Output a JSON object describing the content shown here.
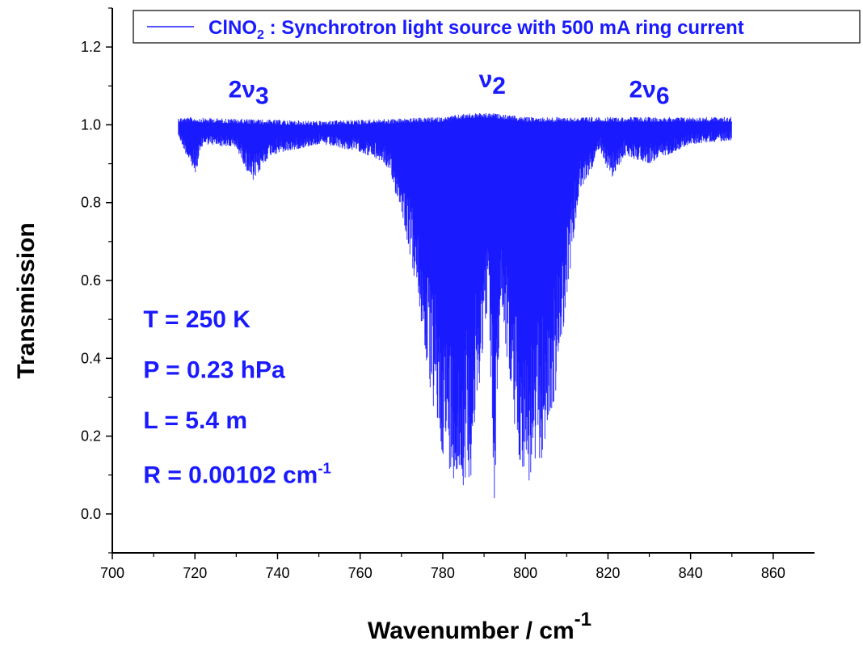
{
  "chart_data": {
    "type": "line",
    "xlabel": {
      "text": "Wavenumber / cm",
      "superscript": "-1"
    },
    "ylabel": "Transmission",
    "xlim": [
      700,
      870
    ],
    "ylim": [
      -0.1,
      1.3
    ],
    "x_ticks": [
      700,
      720,
      740,
      760,
      780,
      800,
      820,
      840,
      860
    ],
    "y_ticks": [
      0.0,
      0.2,
      0.4,
      0.6,
      0.8,
      1.0,
      1.2
    ],
    "x_tick_labels": [
      "700",
      "720",
      "740",
      "760",
      "780",
      "800",
      "820",
      "840",
      "860"
    ],
    "y_tick_labels": [
      "0.0",
      "0.2",
      "0.4",
      "0.6",
      "0.8",
      "1.0",
      "1.2"
    ],
    "legend": {
      "position": "top",
      "text_parts": [
        {
          "text": "ClNO",
          "style": "normal"
        },
        {
          "text": "2",
          "style": "sub"
        },
        {
          "text": " : Synchrotron light source with 500 mA ring current",
          "style": "normal"
        }
      ]
    },
    "series_color": "#1a1aff",
    "series": [
      {
        "name": "ClNO2 : Synchrotron light source with 500 mA ring current",
        "x_range": [
          716,
          850
        ],
        "lower_envelope": [
          {
            "x": 716,
            "y": 0.97
          },
          {
            "x": 720,
            "y": 0.87
          },
          {
            "x": 722,
            "y": 0.95
          },
          {
            "x": 730,
            "y": 0.94
          },
          {
            "x": 734,
            "y": 0.85
          },
          {
            "x": 738,
            "y": 0.92
          },
          {
            "x": 750,
            "y": 0.95
          },
          {
            "x": 760,
            "y": 0.93
          },
          {
            "x": 766,
            "y": 0.9
          },
          {
            "x": 770,
            "y": 0.78
          },
          {
            "x": 774,
            "y": 0.55
          },
          {
            "x": 777,
            "y": 0.3
          },
          {
            "x": 780,
            "y": 0.15
          },
          {
            "x": 784,
            "y": 0.06
          },
          {
            "x": 787,
            "y": 0.1
          },
          {
            "x": 789,
            "y": 0.35
          },
          {
            "x": 791,
            "y": 0.55
          },
          {
            "x": 792.5,
            "y": 0.01
          },
          {
            "x": 794,
            "y": 0.55
          },
          {
            "x": 796,
            "y": 0.35
          },
          {
            "x": 798,
            "y": 0.15
          },
          {
            "x": 801,
            "y": 0.07
          },
          {
            "x": 804,
            "y": 0.14
          },
          {
            "x": 807,
            "y": 0.28
          },
          {
            "x": 810,
            "y": 0.55
          },
          {
            "x": 813,
            "y": 0.82
          },
          {
            "x": 818,
            "y": 0.93
          },
          {
            "x": 821,
            "y": 0.86
          },
          {
            "x": 824,
            "y": 0.92
          },
          {
            "x": 830,
            "y": 0.9
          },
          {
            "x": 840,
            "y": 0.95
          },
          {
            "x": 850,
            "y": 0.96
          }
        ],
        "upper_envelope": [
          {
            "x": 716,
            "y": 1.02
          },
          {
            "x": 750,
            "y": 1.01
          },
          {
            "x": 780,
            "y": 1.02
          },
          {
            "x": 786,
            "y": 1.03
          },
          {
            "x": 792,
            "y": 1.03
          },
          {
            "x": 800,
            "y": 1.02
          },
          {
            "x": 830,
            "y": 1.02
          },
          {
            "x": 850,
            "y": 1.02
          }
        ]
      }
    ],
    "annotations": [
      {
        "id": "2v3",
        "parts": [
          {
            "text": "2ν",
            "style": "normal"
          },
          {
            "text": "3",
            "style": "sub"
          }
        ],
        "x": 733,
        "y": 1.07
      },
      {
        "id": "v2",
        "parts": [
          {
            "text": "ν",
            "style": "raised"
          },
          {
            "text": "2",
            "style": "normal"
          }
        ],
        "x": 792,
        "y": 1.08
      },
      {
        "id": "2v6",
        "parts": [
          {
            "text": "2ν",
            "style": "normal"
          },
          {
            "text": "6",
            "style": "sub"
          }
        ],
        "x": 830,
        "y": 1.07
      },
      {
        "id": "temperature",
        "parts": [
          {
            "text": "T = 250 K",
            "style": "normal"
          }
        ],
        "x": 707.5,
        "y": 0.48
      },
      {
        "id": "pressure",
        "parts": [
          {
            "text": "P = 0.23 hPa",
            "style": "normal"
          }
        ],
        "x": 707.5,
        "y": 0.35
      },
      {
        "id": "length",
        "parts": [
          {
            "text": "L = 5.4 m",
            "style": "normal"
          }
        ],
        "x": 707.5,
        "y": 0.22
      },
      {
        "id": "resolution",
        "parts": [
          {
            "text": "R = 0.00102 cm",
            "style": "normal"
          },
          {
            "text": "-1",
            "style": "sup"
          }
        ],
        "x": 707.5,
        "y": 0.08
      }
    ],
    "grid": false
  }
}
